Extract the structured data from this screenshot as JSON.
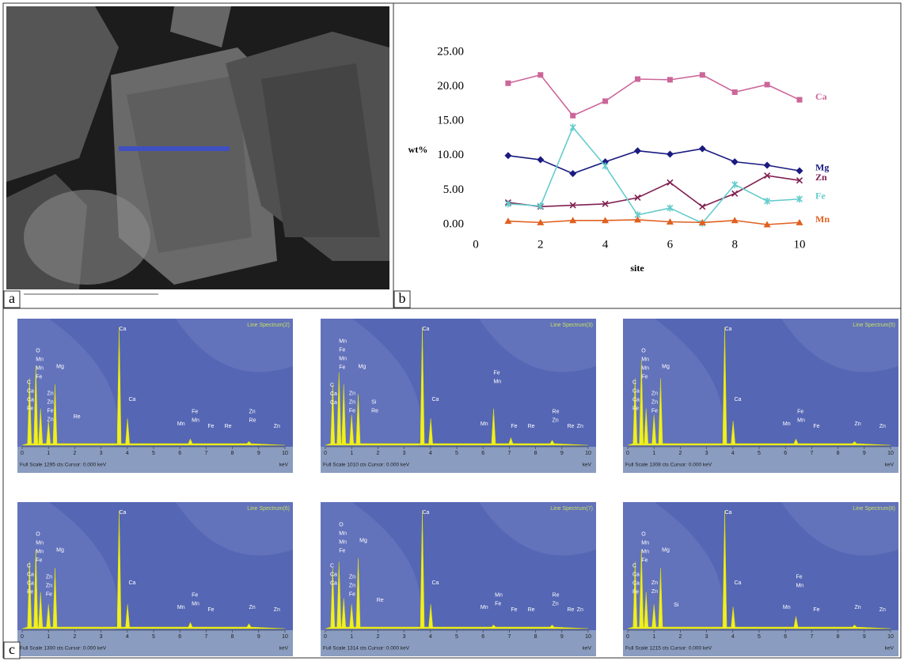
{
  "panel_labels": [
    "a",
    "b",
    "c"
  ],
  "chart_data": {
    "type": "line",
    "x": [
      1,
      2,
      3,
      4,
      5,
      6,
      7,
      8,
      9,
      10
    ],
    "xlabel": "site",
    "ylabel": "wt%",
    "xlim": [
      0,
      10
    ],
    "xticks": [
      0,
      2,
      4,
      6,
      8,
      10
    ],
    "ylim": [
      0,
      25
    ],
    "yticks": [
      {
        "value": 0,
        "label": "0.00"
      },
      {
        "value": 5,
        "label": "5.00"
      },
      {
        "value": 10,
        "label": "10.00"
      },
      {
        "value": 15,
        "label": "15.00"
      },
      {
        "value": 20,
        "label": "20.00"
      },
      {
        "value": 25,
        "label": "25.00"
      }
    ],
    "series": [
      {
        "name": "Ca",
        "color": "#cc6699",
        "marker": "square",
        "values": [
          20.5,
          21.7,
          15.8,
          17.9,
          21.1,
          21.0,
          21.7,
          19.2,
          20.3,
          18.1
        ]
      },
      {
        "name": "Mg",
        "color": "#1a1a80",
        "marker": "diamond",
        "values": [
          10.0,
          9.4,
          7.4,
          9.1,
          10.7,
          10.2,
          11.0,
          9.1,
          8.6,
          7.8
        ]
      },
      {
        "name": "Zn",
        "color": "#802050",
        "marker": "x",
        "values": [
          3.2,
          2.6,
          2.8,
          3.0,
          3.9,
          6.1,
          2.6,
          4.5,
          7.1,
          6.4
        ]
      },
      {
        "name": "Fe",
        "color": "#66cccc",
        "marker": "star",
        "values": [
          3.0,
          2.7,
          14.1,
          8.5,
          1.4,
          2.4,
          0.2,
          5.8,
          3.4,
          3.7
        ]
      },
      {
        "name": "Mn",
        "color": "#e06020",
        "marker": "triangle",
        "values": [
          0.5,
          0.3,
          0.6,
          0.6,
          0.7,
          0.4,
          0.3,
          0.6,
          0.0,
          0.3
        ]
      }
    ]
  },
  "spectrum_axis": {
    "ticks": [
      0,
      1,
      2,
      3,
      4,
      5,
      6,
      7,
      8,
      9,
      10
    ],
    "unit": "keV"
  },
  "spectra": [
    {
      "title": "Line Spectrum(2)",
      "footer": "Full Scale 1295 cts  Cursor: 0.000 keV",
      "stacks": [
        [
          "O",
          "Mn",
          "Mn",
          "Fe"
        ],
        [
          "C",
          "Ca",
          "Ca",
          "Fe"
        ],
        [
          "Zn",
          "Zn",
          "Fe",
          "Zn"
        ],
        [
          "Mg"
        ],
        [
          "Re"
        ],
        [
          "Ca"
        ],
        [
          "Ca"
        ],
        [
          "Mn"
        ],
        [
          "Fe",
          "Mn"
        ],
        [
          "Fe"
        ],
        [
          "Re"
        ],
        [
          "Zn",
          "Re"
        ],
        [
          "Zn"
        ]
      ]
    },
    {
      "title": "Line Spectrum(3)",
      "footer": "Full Scale 1010 cts  Cursor: 0.000 keV",
      "stacks": [
        [
          "Mn",
          "Fe",
          "Mn",
          "Fe"
        ],
        [
          "C",
          "Ca",
          "Ca"
        ],
        [
          "Zn",
          "Zn",
          "Fe"
        ],
        [
          "Mg"
        ],
        [
          "Si",
          "Re"
        ],
        [
          "Ca"
        ],
        [
          "Ca"
        ],
        [
          "Fe",
          "Mn"
        ],
        [
          "Mn"
        ],
        [
          "Fe"
        ],
        [
          "Re"
        ],
        [
          "Re",
          "Zn"
        ],
        [
          "Re"
        ],
        [
          "Zn"
        ]
      ]
    },
    {
      "title": "Line Spectrum(5)",
      "footer": "Full Scale 1308 cts  Cursor: 0.000 keV",
      "stacks": [
        [
          "O",
          "Mn",
          "Mn",
          "Fe"
        ],
        [
          "C",
          "Ca",
          "Ca",
          "Fe"
        ],
        [
          "Zn",
          "Zn",
          "Fe"
        ],
        [
          "Mg"
        ],
        [
          "Ca"
        ],
        [
          "Ca"
        ],
        [
          "Mn"
        ],
        [
          "Fe",
          "Mn"
        ],
        [
          "Fe"
        ],
        [
          "Zn"
        ],
        [
          "Zn"
        ]
      ]
    },
    {
      "title": "Line Spectrum(6)",
      "footer": "Full Scale 1300 cts  Cursor: 0.000 keV",
      "stacks": [
        [
          "O",
          "Mn",
          "Mn",
          "Fe"
        ],
        [
          "C",
          "Ca",
          "Ca",
          "Fe"
        ],
        [
          "Zn",
          "Zn",
          "Fe"
        ],
        [
          "Mg"
        ],
        [
          "Ca"
        ],
        [
          "Ca"
        ],
        [
          "Mn"
        ],
        [
          "Fe",
          "Mn"
        ],
        [
          "Fe"
        ],
        [
          "Zn"
        ],
        [
          "Zn"
        ]
      ]
    },
    {
      "title": "Line Spectrum(7)",
      "footer": "Full Scale 1314 cts  Cursor: 0.000 keV",
      "stacks": [
        [
          "O",
          "Mn",
          "Mn",
          "Fe"
        ],
        [
          "C",
          "Ca",
          "Ca"
        ],
        [
          "Zn",
          "Zn",
          "Fe"
        ],
        [
          "Mg"
        ],
        [
          "Re"
        ],
        [
          "Ca"
        ],
        [
          "Ca"
        ],
        [
          "Mn"
        ],
        [
          "Mn",
          "Fe"
        ],
        [
          "Fe"
        ],
        [
          "Re"
        ],
        [
          "Re",
          "Zn"
        ],
        [
          "Re"
        ],
        [
          "Zn"
        ]
      ]
    },
    {
      "title": "Line Spectrum(8)",
      "footer": "Full Scale 1215 cts  Cursor: 0.000 keV",
      "stacks": [
        [
          "O",
          "Mn",
          "Mn",
          "Fe"
        ],
        [
          "C",
          "Ca",
          "Ca",
          "Fe"
        ],
        [
          "Zn",
          "Zn"
        ],
        [
          "Mg"
        ],
        [
          "Si"
        ],
        [
          "Ca"
        ],
        [
          "Ca"
        ],
        [
          "Mn"
        ],
        [
          "Fe",
          "Mn"
        ],
        [
          "Fe"
        ],
        [
          "Zn"
        ],
        [
          "Zn"
        ]
      ]
    }
  ]
}
